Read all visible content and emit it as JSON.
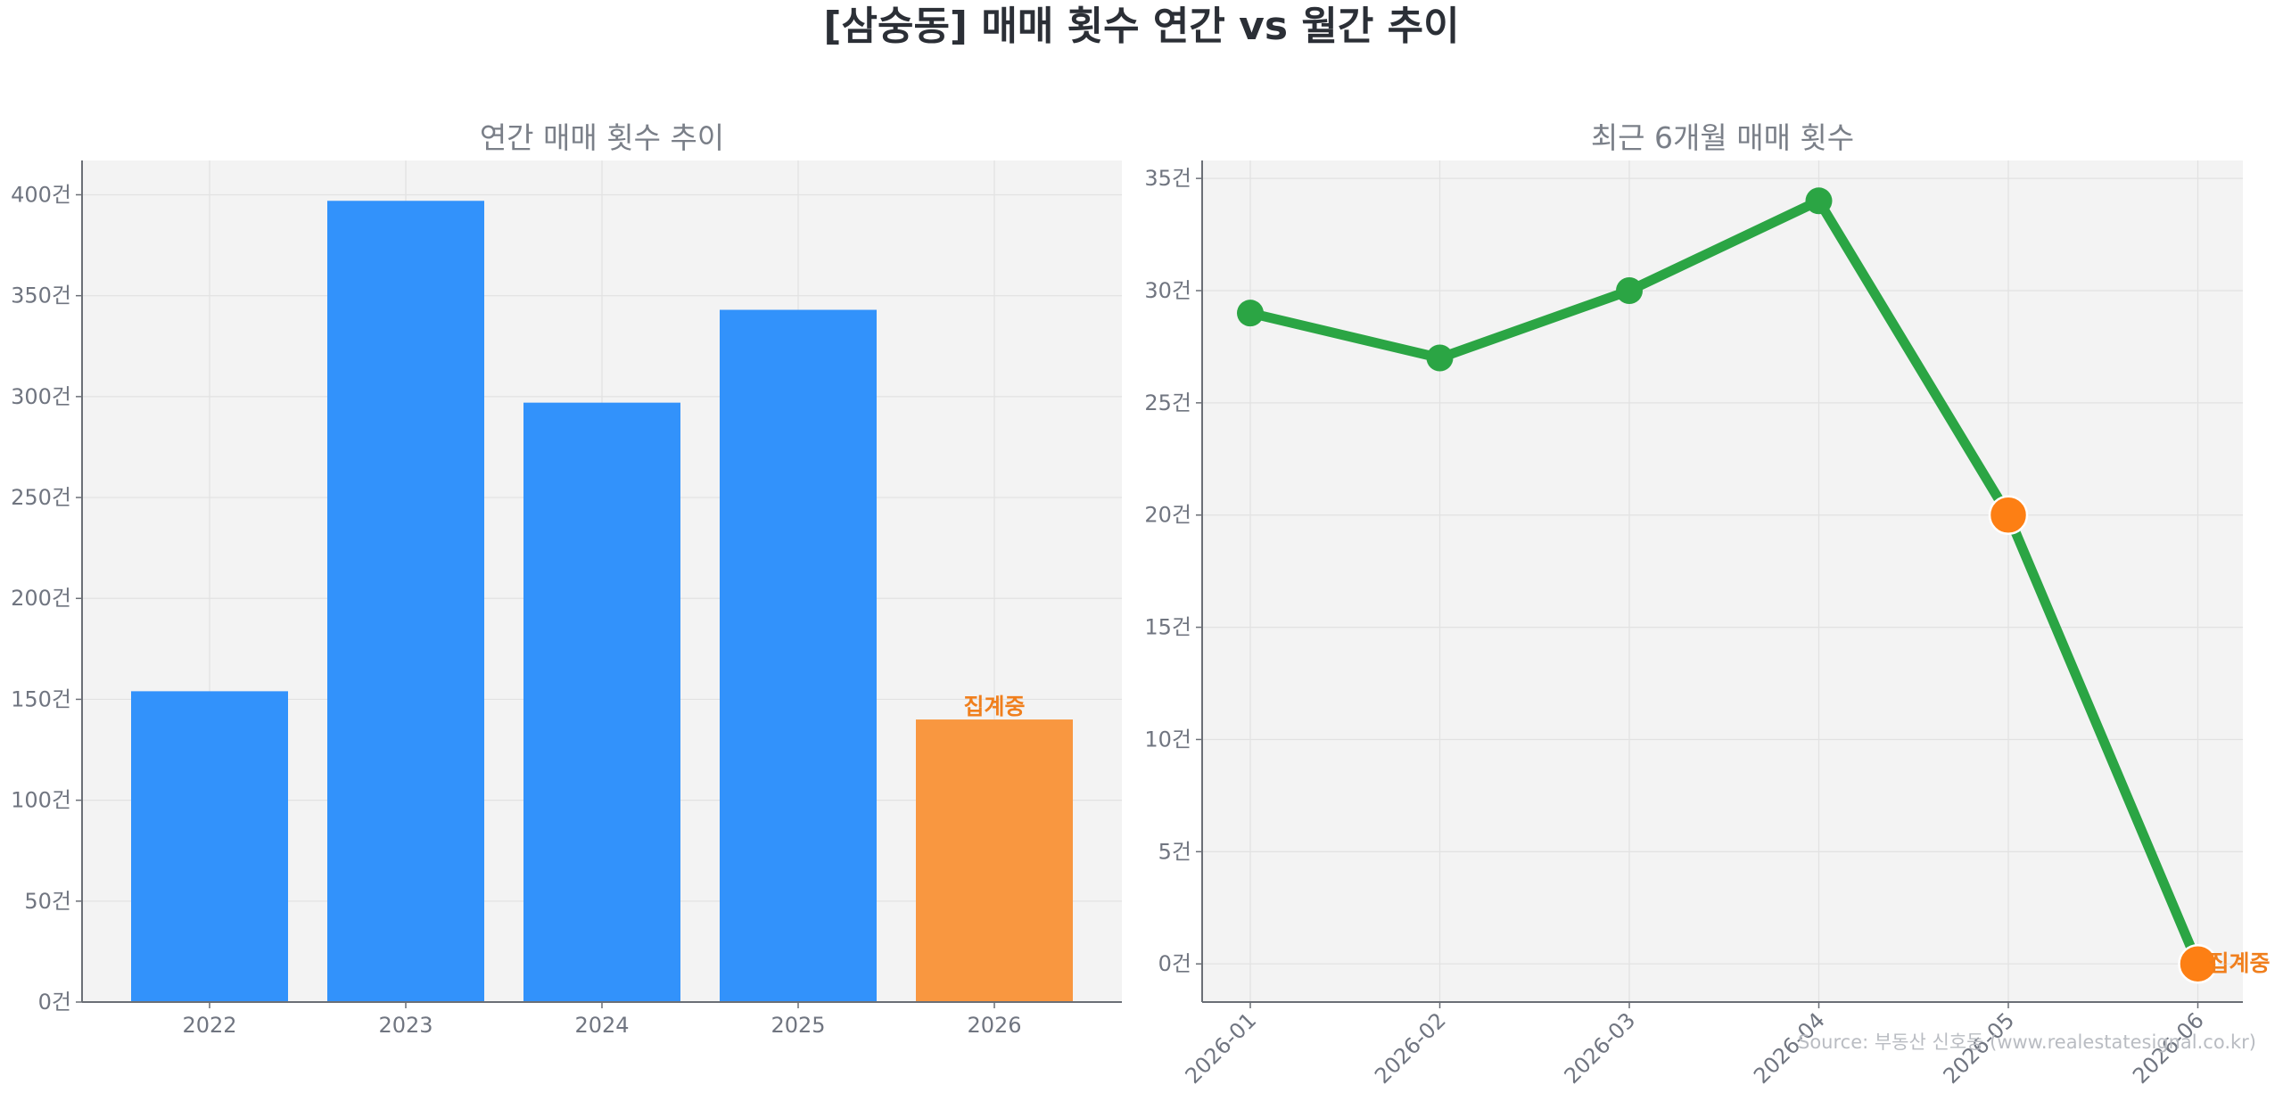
{
  "title": "[삼숭동] 매매 횟수 연간 vs 월간 추이",
  "source_text": "Source: 부동산 신호등 (www.realestatesignal.co.kr)",
  "chart_data": [
    {
      "type": "bar",
      "title": "연간 매매 횟수 추이",
      "categories": [
        "2022",
        "2023",
        "2024",
        "2025",
        "2026"
      ],
      "values": [
        154,
        397,
        297,
        343,
        140
      ],
      "ylim": [
        0,
        417
      ],
      "yticks": [
        0,
        50,
        100,
        150,
        200,
        250,
        300,
        350,
        400
      ],
      "ytick_labels": [
        "0건",
        "50건",
        "100건",
        "150건",
        "200건",
        "250건",
        "300건",
        "350건",
        "400건"
      ],
      "bar_colors": [
        "#3292fb",
        "#3292fb",
        "#3292fb",
        "#3292fb",
        "#f99740"
      ],
      "annotation": {
        "category": "2026",
        "text": "집계중",
        "color": "#f07f1d"
      },
      "grid": true,
      "xlabel": "",
      "ylabel": ""
    },
    {
      "type": "line",
      "title": "최근 6개월 매매 횟수",
      "x": [
        "2026-01",
        "2026-02",
        "2026-03",
        "2026-04",
        "2026-05",
        "2026-06"
      ],
      "values": [
        29,
        27,
        30,
        34,
        20,
        0
      ],
      "ylim": [
        -1.7,
        35.8
      ],
      "yticks": [
        0,
        5,
        10,
        15,
        20,
        25,
        30,
        35
      ],
      "ytick_labels": [
        "0건",
        "5건",
        "10건",
        "15건",
        "20건",
        "25건",
        "30건",
        "35건"
      ],
      "line_color": "#2ba544",
      "marker_colors": [
        "#2ba544",
        "#2ba544",
        "#2ba544",
        "#2ba544",
        "#fd7f14",
        "#fd7f14"
      ],
      "annotation": {
        "x": "2026-06",
        "text": "집계중",
        "color": "#f07f1d"
      },
      "grid": true,
      "xlabel": "",
      "ylabel": ""
    }
  ]
}
